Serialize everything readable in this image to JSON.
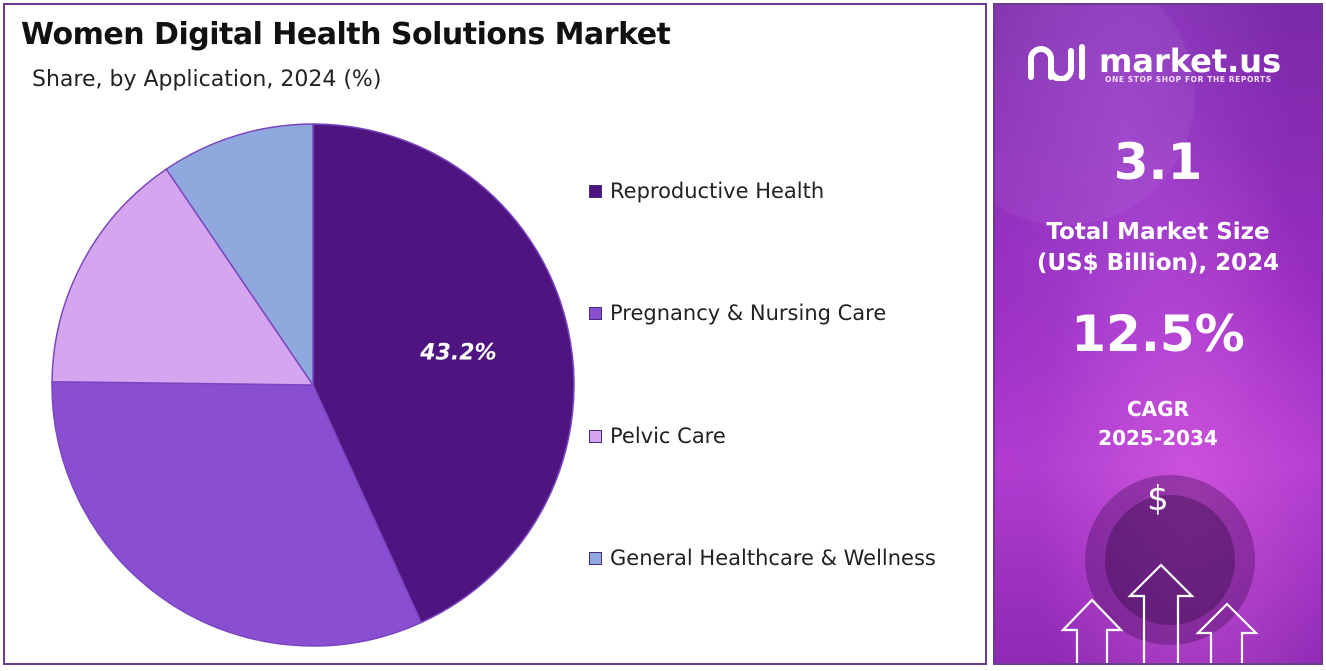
{
  "chart_data": {
    "type": "pie",
    "title": "Women Digital Health Solutions Market",
    "subtitle": "Share, by Application, 2024 (%)",
    "categories": [
      "Reproductive Health",
      "Pregnancy & Nursing Care",
      "Pelvic Care",
      "General Healthcare & Wellness"
    ],
    "values": [
      43.2,
      32.0,
      15.3,
      9.5
    ],
    "data_labels": [
      "43.2%",
      "",
      "",
      ""
    ],
    "colors": [
      "#4e1580",
      "#8a4fd0",
      "#d3a6ef",
      "#8fa8de"
    ],
    "legend_position": "right"
  },
  "sidebar": {
    "logo_text": "market.us",
    "logo_tagline": "ONE STOP SHOP FOR THE REPORTS",
    "market_size_value": "3.1",
    "market_size_label_line1": "Total Market Size",
    "market_size_label_line2": "(US$ Billion), 2024",
    "cagr_value": "12.5%",
    "cagr_label_line1": "CAGR",
    "cagr_label_line2": "2025-2034",
    "currency_symbol": "$",
    "icons": [
      "logo-icon",
      "dollar-icon",
      "arrow-up-icon"
    ]
  }
}
